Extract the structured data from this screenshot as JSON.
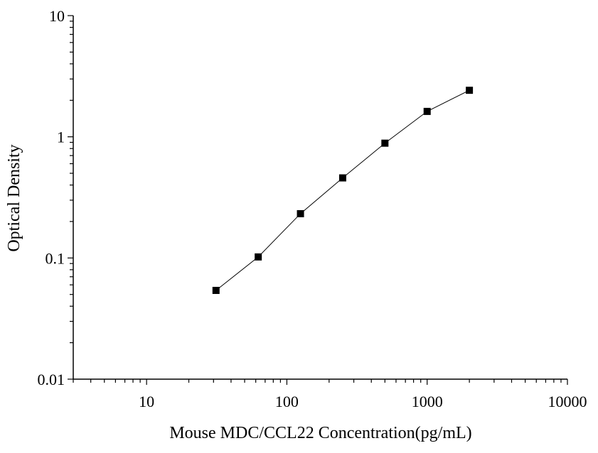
{
  "chart_data": {
    "type": "scatter",
    "title": "",
    "xlabel": "Mouse MDC/CCL22 Concentration(pg/mL)",
    "ylabel": "Optical Density",
    "xscale": "log",
    "yscale": "log",
    "xlim": [
      3,
      10000
    ],
    "ylim": [
      0.01,
      10
    ],
    "x_tick_labels": [
      "10",
      "100",
      "1000",
      "10000"
    ],
    "y_tick_labels": [
      "0.01",
      "0.1",
      "1",
      "10"
    ],
    "grid": false,
    "legend": "none",
    "marker": "square",
    "fit_line": true,
    "series": [
      {
        "x": [
          31.25,
          62.5,
          125,
          250,
          500,
          1000,
          2000
        ],
        "y": [
          0.054,
          0.102,
          0.232,
          0.458,
          0.886,
          1.62,
          2.42
        ]
      }
    ]
  },
  "colors": {
    "axis": "#000000",
    "marker": "#000000",
    "line": "#000000"
  }
}
